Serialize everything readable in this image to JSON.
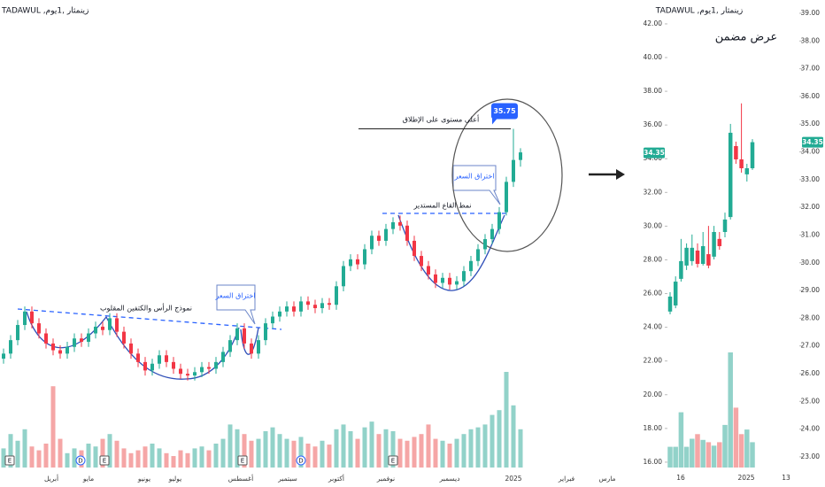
{
  "chart_data": [
    {
      "type": "candlestick",
      "header": "TADAWUL ,زينمثار ,1يوم",
      "up_color": "#22ab94",
      "down_color": "#f23645",
      "volume_up_color": "#92d2c9",
      "volume_down_color": "#f5a6a6",
      "ylim": [
        20,
        43.4
      ],
      "volume_lim": [
        0,
        100
      ],
      "ohlc": [
        [
          22.1,
          22.7,
          21.8,
          22.4
        ],
        [
          22.4,
          23.5,
          22.1,
          23.2
        ],
        [
          23.2,
          24.4,
          22.9,
          24.1
        ],
        [
          24.1,
          25.2,
          23.8,
          24.9
        ],
        [
          24.9,
          25.2,
          23.9,
          24.2
        ],
        [
          24.2,
          24.5,
          23.3,
          23.6
        ],
        [
          23.6,
          23.9,
          22.7,
          23.0
        ],
        [
          23.0,
          23.3,
          22.3,
          22.6
        ],
        [
          22.6,
          22.9,
          22.1,
          22.4
        ],
        [
          22.4,
          23.1,
          22.1,
          22.8
        ],
        [
          22.8,
          23.6,
          22.5,
          23.3
        ],
        [
          23.3,
          23.6,
          22.8,
          23.1
        ],
        [
          23.1,
          23.9,
          22.8,
          23.6
        ],
        [
          23.6,
          24.3,
          23.3,
          24.0
        ],
        [
          24.0,
          24.3,
          23.5,
          23.8
        ],
        [
          23.8,
          24.8,
          23.5,
          24.5
        ],
        [
          24.5,
          24.8,
          23.4,
          23.7
        ],
        [
          23.7,
          24.0,
          22.7,
          23.0
        ],
        [
          23.0,
          23.3,
          22.1,
          22.4
        ],
        [
          22.4,
          22.7,
          21.6,
          21.9
        ],
        [
          21.9,
          22.2,
          21.1,
          21.4
        ],
        [
          21.4,
          22.1,
          21.1,
          21.8
        ],
        [
          21.8,
          22.6,
          21.5,
          22.3
        ],
        [
          22.3,
          22.6,
          21.6,
          21.9
        ],
        [
          21.9,
          22.2,
          21.2,
          21.5
        ],
        [
          21.5,
          21.8,
          20.9,
          21.2
        ],
        [
          21.2,
          21.5,
          20.8,
          21.1
        ],
        [
          21.1,
          21.6,
          20.8,
          21.3
        ],
        [
          21.3,
          21.9,
          21.0,
          21.6
        ],
        [
          21.6,
          21.9,
          21.2,
          21.5
        ],
        [
          21.5,
          22.2,
          21.2,
          21.9
        ],
        [
          21.9,
          22.8,
          21.6,
          22.5
        ],
        [
          22.5,
          23.5,
          22.2,
          23.2
        ],
        [
          23.2,
          24.2,
          22.9,
          23.9
        ],
        [
          23.9,
          24.2,
          22.7,
          23.0
        ],
        [
          23.0,
          23.3,
          22.1,
          22.4
        ],
        [
          22.4,
          23.5,
          22.1,
          23.2
        ],
        [
          23.2,
          24.5,
          22.9,
          24.2
        ],
        [
          24.2,
          24.9,
          23.9,
          24.6
        ],
        [
          24.6,
          25.2,
          24.3,
          24.9
        ],
        [
          24.9,
          25.5,
          24.6,
          25.2
        ],
        [
          25.2,
          25.5,
          24.6,
          24.9
        ],
        [
          24.9,
          25.8,
          24.6,
          25.5
        ],
        [
          25.5,
          25.8,
          25.0,
          25.3
        ],
        [
          25.3,
          25.6,
          24.8,
          25.1
        ],
        [
          25.1,
          25.7,
          24.8,
          25.4
        ],
        [
          25.4,
          25.7,
          25.0,
          25.3
        ],
        [
          25.3,
          26.7,
          25.0,
          26.4
        ],
        [
          26.4,
          27.9,
          26.1,
          27.6
        ],
        [
          27.6,
          28.3,
          27.3,
          28.0
        ],
        [
          28.0,
          28.3,
          27.4,
          27.7
        ],
        [
          27.7,
          28.9,
          27.4,
          28.6
        ],
        [
          28.6,
          29.7,
          28.3,
          29.4
        ],
        [
          29.4,
          29.7,
          28.8,
          29.1
        ],
        [
          29.1,
          30.1,
          28.8,
          29.8
        ],
        [
          29.8,
          30.5,
          29.5,
          30.2
        ],
        [
          30.2,
          30.6,
          29.7,
          30.0
        ],
        [
          30.0,
          30.3,
          28.8,
          29.1
        ],
        [
          29.1,
          29.4,
          27.9,
          28.2
        ],
        [
          28.2,
          28.5,
          27.3,
          27.6
        ],
        [
          27.6,
          27.9,
          26.8,
          27.1
        ],
        [
          27.1,
          27.4,
          26.3,
          26.6
        ],
        [
          26.6,
          27.2,
          26.3,
          26.9
        ],
        [
          26.9,
          27.2,
          26.2,
          26.5
        ],
        [
          26.5,
          27.0,
          26.2,
          26.7
        ],
        [
          26.7,
          27.6,
          26.4,
          27.3
        ],
        [
          27.3,
          28.2,
          27.0,
          27.9
        ],
        [
          27.9,
          28.9,
          27.6,
          28.6
        ],
        [
          28.6,
          29.5,
          28.3,
          29.2
        ],
        [
          29.2,
          30.1,
          28.9,
          29.8
        ],
        [
          29.8,
          31.1,
          29.5,
          30.8
        ],
        [
          30.8,
          32.9,
          30.6,
          32.6
        ],
        [
          32.6,
          35.75,
          32.3,
          33.9
        ],
        [
          33.9,
          34.6,
          33.5,
          34.35
        ]
      ],
      "volume": [
        20,
        35,
        28,
        40,
        22,
        18,
        25,
        85,
        30,
        15,
        20,
        18,
        25,
        22,
        30,
        35,
        28,
        20,
        15,
        18,
        22,
        25,
        20,
        15,
        12,
        18,
        15,
        20,
        22,
        18,
        25,
        30,
        45,
        40,
        35,
        28,
        30,
        38,
        42,
        35,
        30,
        28,
        32,
        25,
        22,
        28,
        24,
        40,
        45,
        38,
        30,
        42,
        48,
        35,
        40,
        38,
        30,
        28,
        32,
        35,
        45,
        30,
        28,
        25,
        30,
        35,
        40,
        42,
        45,
        55,
        60,
        100,
        65,
        40
      ],
      "x_labels": [
        "أبريل",
        "مايو",
        "يونيو",
        "يوليو",
        "أغسطس",
        "سبتمبر",
        "أكتوبر",
        "نوفمبر",
        "ديسمبر",
        "2025",
        "فبراير",
        "مارس"
      ],
      "event_markers": [
        "E",
        "D",
        "E",
        "E",
        "D",
        "E"
      ],
      "annotations": [
        "نموذج الرأس والكتفين المقلوب",
        "اختراق السعر",
        "نمط القاع المستدير",
        "اختراق السعر",
        "أعلى مستوى على الإطلاق"
      ],
      "ath": 35.75
    },
    {
      "type": "candlestick",
      "header": "TADAWUL ,زينمثار ,1يوم",
      "title": "عرض مضمن",
      "up_color": "#22ab94",
      "down_color": "#f23645",
      "volume_up_color": "#92d2c9",
      "volume_down_color": "#f5a6a6",
      "ylim": [
        15.05,
        42.89
      ],
      "yticks": [
        {
          "value": 42,
          "label": "42.00"
        },
        {
          "value": 40,
          "label": "40.00"
        },
        {
          "value": 38,
          "label": "38.00"
        },
        {
          "value": 36,
          "label": "36.00"
        },
        {
          "value": 34,
          "label": "34.00"
        },
        {
          "value": 32,
          "label": "32.00"
        },
        {
          "value": 30,
          "label": "30.00"
        },
        {
          "value": 28,
          "label": "28.00"
        },
        {
          "value": 26,
          "label": "26.00"
        },
        {
          "value": 24,
          "label": "24.00"
        },
        {
          "value": 22,
          "label": "22.00"
        },
        {
          "value": 20,
          "label": "20.00"
        },
        {
          "value": 18,
          "label": "18.00"
        },
        {
          "value": 16,
          "label": "16.00"
        }
      ],
      "y2lim": [
        22.23,
        39.16
      ],
      "y2ticks": [
        {
          "value": 39,
          "label": "39.00"
        },
        {
          "value": 38,
          "label": "38.00"
        },
        {
          "value": 37,
          "label": "37.00"
        },
        {
          "value": 36,
          "label": "36.00"
        },
        {
          "value": 35,
          "label": "35.00"
        },
        {
          "value": 34,
          "label": "34.00"
        },
        {
          "value": 33,
          "label": "33.00"
        },
        {
          "value": 32,
          "label": "32.00"
        },
        {
          "value": 31,
          "label": "31.00"
        },
        {
          "value": 30,
          "label": "30.00"
        },
        {
          "value": 29,
          "label": "29.00"
        },
        {
          "value": 28,
          "label": "28.00"
        },
        {
          "value": 27,
          "label": "27.00"
        },
        {
          "value": 26,
          "label": "26.00"
        },
        {
          "value": 25,
          "label": "25.00"
        },
        {
          "value": 24,
          "label": "24.00"
        },
        {
          "value": 23,
          "label": "23.00"
        }
      ],
      "axis": "y2",
      "last_price": 34.35,
      "volume_lim": [
        0,
        100
      ],
      "ohlc": [
        [
          28.24,
          28.94,
          28.14,
          28.78
        ],
        [
          28.46,
          29.51,
          28.36,
          29.32
        ],
        [
          29.42,
          30.86,
          29.32,
          30.06
        ],
        [
          29.9,
          30.7,
          29.74,
          30.54
        ],
        [
          30.06,
          31.02,
          29.9,
          30.54
        ],
        [
          30.44,
          30.7,
          29.83,
          29.96
        ],
        [
          29.96,
          31.11,
          29.9,
          30.6
        ],
        [
          30.31,
          31.33,
          29.8,
          29.9
        ],
        [
          30.22,
          31.33,
          30.12,
          31.11
        ],
        [
          30.86,
          31.11,
          30.47,
          30.6
        ],
        [
          31.11,
          31.81,
          30.92,
          31.56
        ],
        [
          31.65,
          35.01,
          31.56,
          34.69
        ],
        [
          34.21,
          34.37,
          33.57,
          33.73
        ],
        [
          33.73,
          35.75,
          33.25,
          33.41
        ],
        [
          33.19,
          33.57,
          32.93,
          33.41
        ],
        [
          33.41,
          34.46,
          33.35,
          34.35
        ]
      ],
      "volume": [
        18,
        18,
        48,
        18,
        25,
        29,
        24,
        22,
        19,
        22,
        37,
        100,
        52,
        29,
        33,
        22
      ],
      "x_labels": [
        "16",
        "2025",
        "13"
      ]
    }
  ]
}
